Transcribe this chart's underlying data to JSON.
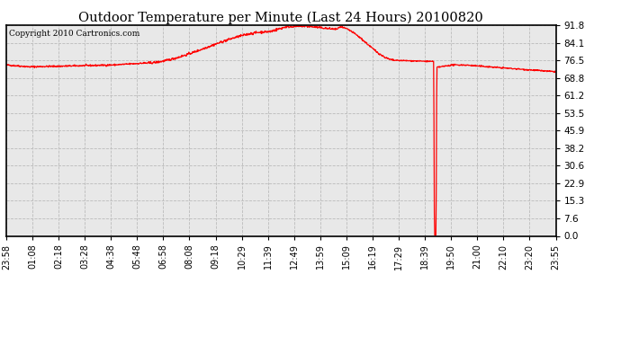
{
  "title": "Outdoor Temperature per Minute (Last 24 Hours) 20100820",
  "copyright_text": "Copyright 2010 Cartronics.com",
  "line_color": "#FF0000",
  "background_color": "#FFFFFF",
  "plot_bg_color": "#E8E8E8",
  "grid_color": "#BBBBBB",
  "yticks": [
    0.0,
    7.6,
    15.3,
    22.9,
    30.6,
    38.2,
    45.9,
    53.5,
    61.2,
    68.8,
    76.5,
    84.1,
    91.8
  ],
  "ylim": [
    0.0,
    91.8
  ],
  "xtick_labels": [
    "23:58",
    "01:08",
    "02:18",
    "03:28",
    "04:38",
    "05:48",
    "06:58",
    "08:08",
    "09:18",
    "10:29",
    "11:39",
    "12:49",
    "13:59",
    "15:09",
    "16:19",
    "17:29",
    "18:39",
    "19:50",
    "21:00",
    "22:10",
    "23:20",
    "23:55"
  ],
  "num_points": 1440,
  "spike_index": 1119,
  "figsize": [
    6.9,
    3.75
  ],
  "dpi": 100
}
